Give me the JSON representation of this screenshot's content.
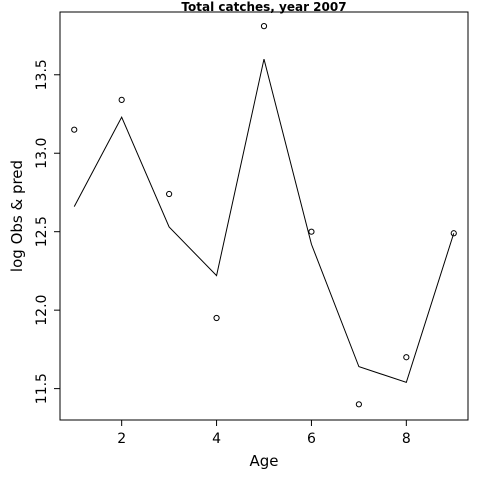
{
  "chart_data": {
    "type": "scatter",
    "title": "Total catches, year 2007",
    "xlabel": "Age",
    "ylabel": "log Obs & pred",
    "xlim": [
      0.7,
      9.3
    ],
    "ylim": [
      11.3,
      13.9
    ],
    "x_ticks": [
      2,
      4,
      6,
      8
    ],
    "y_ticks": [
      11.5,
      12.0,
      12.5,
      13.0,
      13.5
    ],
    "y_tick_labels": [
      "11.5",
      "12.0",
      "12.5",
      "13.0",
      "13.5"
    ],
    "grid": false,
    "series": [
      {
        "kind": "points",
        "x": [
          1,
          2,
          3,
          4,
          5,
          6,
          7,
          8,
          9
        ],
        "y": [
          13.15,
          13.34,
          12.74,
          11.95,
          13.81,
          12.5,
          11.4,
          11.7,
          12.49
        ]
      },
      {
        "kind": "line",
        "x": [
          1,
          2,
          3,
          4,
          5,
          6,
          7,
          8,
          9
        ],
        "y": [
          12.66,
          13.23,
          12.53,
          12.22,
          13.6,
          12.42,
          11.64,
          11.54,
          12.49
        ]
      }
    ]
  }
}
